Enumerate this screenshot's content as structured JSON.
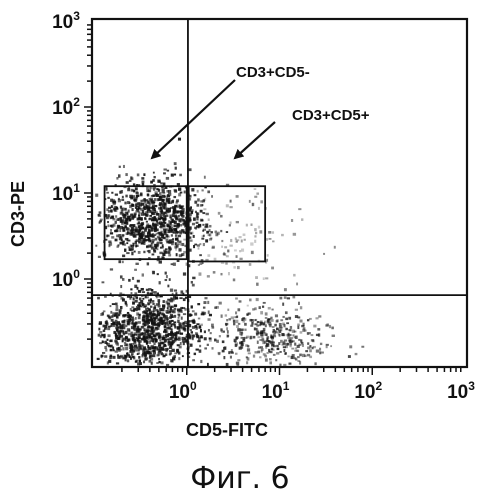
{
  "chart_data": {
    "type": "scatter",
    "title": "",
    "xlabel": "CD5-FITC",
    "ylabel": "CD3-PE",
    "xscale": "log",
    "yscale": "log",
    "xlim": [
      0.1,
      1000
    ],
    "ylim": [
      0.1,
      1000
    ],
    "x_ticks": [
      {
        "base": "10",
        "exp": "0",
        "value": 1
      },
      {
        "base": "10",
        "exp": "1",
        "value": 10
      },
      {
        "base": "10",
        "exp": "2",
        "value": 100
      },
      {
        "base": "10",
        "exp": "3",
        "value": 1000
      }
    ],
    "y_ticks": [
      {
        "base": "10",
        "exp": "0",
        "value": 1
      },
      {
        "base": "10",
        "exp": "1",
        "value": 10
      },
      {
        "base": "10",
        "exp": "2",
        "value": 100
      },
      {
        "base": "10",
        "exp": "3",
        "value": 1000
      }
    ],
    "quadrant_lines": {
      "x": 1.03,
      "y": 0.65
    },
    "gates": [
      {
        "label": "CD3+CD5-",
        "x_range": [
          0.13,
          1.0
        ],
        "y_range": [
          1.7,
          12
        ]
      },
      {
        "label": "CD3+CD5+",
        "x_range": [
          1.05,
          7.0
        ],
        "y_range": [
          1.6,
          12
        ]
      }
    ],
    "populations": [
      {
        "center": [
          0.42,
          5.0
        ],
        "spread": [
          0.28,
          0.24
        ],
        "count": 900,
        "density": "high"
      },
      {
        "center": [
          0.38,
          0.27
        ],
        "spread": [
          0.28,
          0.24
        ],
        "count": 1000,
        "density": "high"
      },
      {
        "center": [
          8.0,
          0.22
        ],
        "spread": [
          0.3,
          0.18
        ],
        "count": 380,
        "density": "medium"
      },
      {
        "center": [
          3.0,
          2.8
        ],
        "spread": [
          0.35,
          0.3
        ],
        "count": 120,
        "density": "low"
      }
    ]
  },
  "caption": "Фиг. 6"
}
